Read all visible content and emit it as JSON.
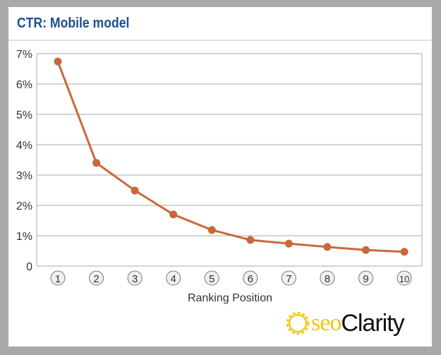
{
  "chart_data": {
    "type": "line",
    "title": "CTR: Mobile model",
    "xlabel": "Ranking Position",
    "ylabel": "",
    "categories": [
      "1",
      "2",
      "3",
      "4",
      "5",
      "6",
      "7",
      "8",
      "9",
      "10"
    ],
    "values": [
      6.74,
      3.4,
      2.49,
      1.7,
      1.19,
      0.86,
      0.74,
      0.63,
      0.53,
      0.47
    ],
    "y_ticks": [
      "0",
      "1%",
      "2%",
      "3%",
      "4%",
      "5%",
      "6%",
      "7%"
    ],
    "ylim": [
      0,
      7
    ],
    "grid": true,
    "line_color": "#c8693a",
    "title_color": "#1c4f91"
  },
  "logo": {
    "part1": "seo",
    "part2": "Clarity"
  }
}
